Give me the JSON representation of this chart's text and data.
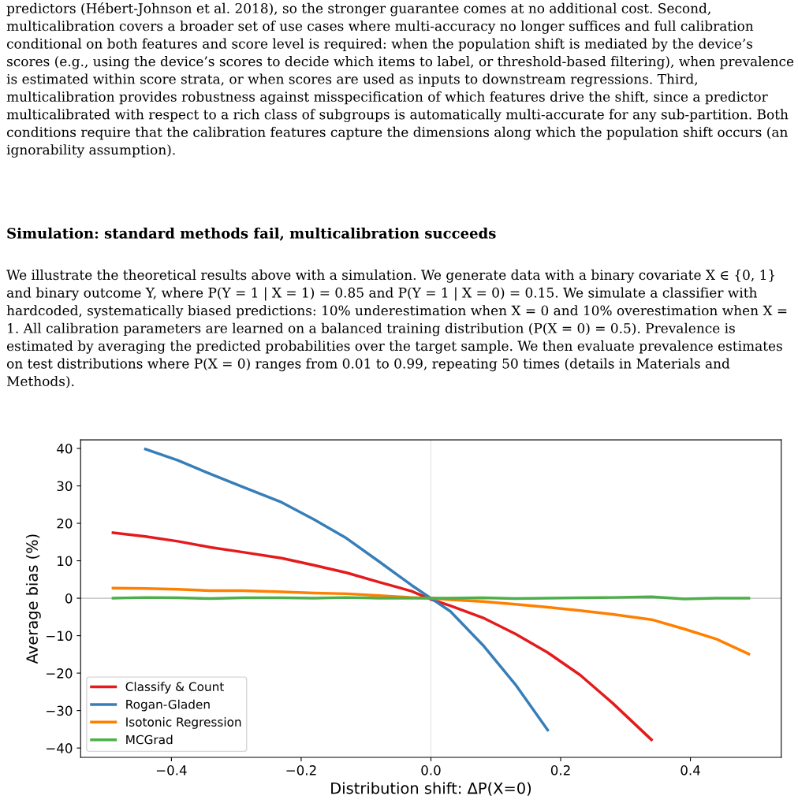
{
  "chart_data": {
    "type": "line",
    "title": "Simulation: standard methods fail, multicalibration succeeds",
    "subtitle": "We illustrate the theoretical results above with a simulation. We generate data with a binary covariate X ∈ {0, 1} and binary outcome Y, where P(Y = 1 | X = 1) = 0.85 and P(Y = 1 | X = 0) = 0.15. We simulate a classifier with hardcoded, systematically biased predictions: 10% underestimation when X = 0 and 10% overestimation when X = 1. All calibration parameters are learned on a balanced training distribution (P(X = 0) = 0.5). Prevalence is estimated by averaging the predicted probabilities over the target sample. We then evaluate prevalence estimates on test distributions where P(X = 0) ranges from 0.01 to 0.99, repeating 50 times (details in Materials and Methods).",
    "annotations": [
      "predictors (Hébert-Johnson et al. 2018), so the stronger guarantee comes at no additional cost. Second, multicalibration covers a broader set of use cases where multi-accuracy no longer suffices and full calibration conditional on both features and score level is required: when the population shift is mediated by the device’s scores (e.g., using the device’s scores to decide which items to label, or threshold-based filtering), when prevalence is estimated within score strata, or when scores are used as inputs to downstream regressions. Third, multicalibration provides robustness against misspecification of which features drive the shift, since a predictor multicalibrated with respect to a rich class of subgroups is automatically multi-accurate for any sub-partition. Both conditions require that the calibration features capture the dimensions along which the population shift occurs (an ignorability assumption)."
    ],
    "xlabel": "Distribution shift: ΔP(X=0)",
    "ylabel": "Average bias (%)",
    "xlim": [
      -0.54,
      0.54
    ],
    "ylim": [
      -42.5,
      42.3
    ],
    "xticks": [
      {
        "value": -0.4,
        "label": "−0.4"
      },
      {
        "value": -0.2,
        "label": "−0.2"
      },
      {
        "value": 0,
        "label": "0.0"
      },
      0.2,
      0.4
    ],
    "yticks": [
      {
        "value": -40,
        "label": "−40"
      },
      {
        "value": -30,
        "label": "−30"
      },
      {
        "value": -20,
        "label": "−20"
      },
      {
        "value": -10,
        "label": "−10"
      },
      0,
      10,
      20,
      30,
      40
    ],
    "grid": false,
    "legend": "bottom left",
    "marker": "none",
    "line_style": "solid",
    "ref_lines": [
      {
        "axis": "y",
        "value": 0,
        "color": "#bbbbbb"
      },
      {
        "axis": "x",
        "value": 0,
        "color": "#e8e8e8"
      }
    ],
    "series": [
      {
        "name": "Classify & Count",
        "color": "#e41a1c",
        "x": [
          -0.49,
          -0.44,
          -0.39,
          -0.34,
          -0.29,
          -0.23,
          -0.18,
          -0.13,
          -0.08,
          -0.03,
          0.0,
          0.03,
          0.08,
          0.13,
          0.18,
          0.23,
          0.28,
          0.34
        ],
        "values": [
          17.5,
          16.5,
          15.2,
          13.6,
          12.3,
          10.7,
          8.8,
          6.8,
          4.3,
          1.9,
          -0.3,
          -2.0,
          -5.2,
          -9.5,
          -14.5,
          -20.5,
          -28.0,
          -37.8
        ]
      },
      {
        "name": "Rogan-Gladen",
        "color": "#377eb8",
        "x": [
          -0.44,
          -0.39,
          -0.34,
          -0.29,
          -0.23,
          -0.18,
          -0.13,
          -0.08,
          -0.03,
          0.0,
          0.03,
          0.08,
          0.13,
          0.18
        ],
        "values": [
          39.8,
          36.8,
          33.2,
          29.7,
          25.6,
          21.0,
          16.0,
          9.8,
          3.5,
          0.0,
          -3.5,
          -12.5,
          -23.0,
          -35.2
        ]
      },
      {
        "name": "Isotonic Regression",
        "color": "#ff7f00",
        "x": [
          -0.49,
          -0.44,
          -0.39,
          -0.34,
          -0.29,
          -0.23,
          -0.18,
          -0.13,
          -0.08,
          -0.03,
          0.0,
          0.03,
          0.08,
          0.13,
          0.18,
          0.23,
          0.28,
          0.34,
          0.39,
          0.44,
          0.49
        ],
        "values": [
          2.7,
          2.6,
          2.4,
          2.0,
          2.0,
          1.7,
          1.4,
          1.2,
          0.7,
          0.2,
          0.0,
          -0.4,
          -0.9,
          -1.6,
          -2.4,
          -3.3,
          -4.3,
          -5.7,
          -8.2,
          -10.9,
          -14.9
        ]
      },
      {
        "name": "MCGrad",
        "color": "#4daf4a",
        "x": [
          -0.49,
          -0.44,
          -0.39,
          -0.34,
          -0.29,
          -0.23,
          -0.18,
          -0.13,
          -0.08,
          -0.03,
          0.0,
          0.03,
          0.08,
          0.13,
          0.18,
          0.23,
          0.28,
          0.34,
          0.39,
          0.44,
          0.49
        ],
        "values": [
          0.0,
          0.2,
          0.1,
          -0.1,
          0.1,
          0.1,
          0.0,
          0.2,
          0.0,
          0.0,
          0.0,
          0.0,
          0.1,
          -0.1,
          0.0,
          0.1,
          0.2,
          0.4,
          -0.2,
          0.0,
          0.0
        ]
      }
    ]
  }
}
